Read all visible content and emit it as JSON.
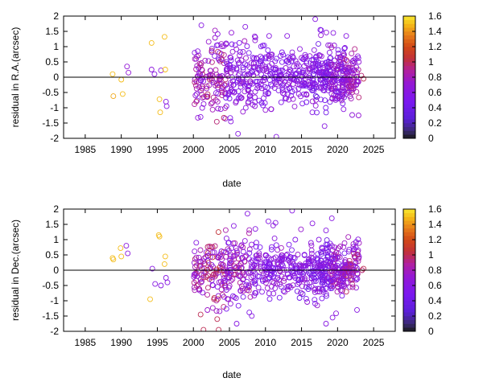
{
  "colors": {
    "axis": "#000000",
    "zero_line": "#000000",
    "cbar_stops": [
      [
        0.0,
        "#1a1a1a"
      ],
      [
        0.06,
        "#3a2a70"
      ],
      [
        0.16,
        "#5a20d8"
      ],
      [
        0.3,
        "#7a18f0"
      ],
      [
        0.45,
        "#9418d4"
      ],
      [
        0.55,
        "#b020a0"
      ],
      [
        0.65,
        "#c0303a"
      ],
      [
        0.75,
        "#d24818"
      ],
      [
        0.85,
        "#e8801a"
      ],
      [
        0.93,
        "#f4b818"
      ],
      [
        1.0,
        "#f8e830"
      ]
    ]
  },
  "chart_data": [
    {
      "type": "scatter",
      "xlabel": "date",
      "ylabel": "residual in R.A.(arcsec)",
      "xlim": [
        1982,
        2028
      ],
      "ylim": [
        -2,
        2
      ],
      "x_ticks": [
        "1985",
        "1990",
        "1995",
        "2000",
        "2005",
        "2010",
        "2015",
        "2020",
        "2025"
      ],
      "y_ticks": [
        "2",
        "1.5",
        "1",
        "0.5",
        "0",
        "-0.5",
        "-1",
        "-1.5",
        "-2"
      ],
      "colorbar": {
        "range": [
          0,
          1.6
        ],
        "ticks": [
          "1.6",
          "1.4",
          "1.2",
          "1",
          "0.8",
          "0.6",
          "0.4",
          "0.2",
          "0"
        ]
      },
      "points": [
        [
          1988.8,
          0.1,
          1.5
        ],
        [
          1988.9,
          -0.62,
          1.45
        ],
        [
          1990.0,
          -0.08,
          1.5
        ],
        [
          1990.2,
          -0.55,
          1.5
        ],
        [
          1990.8,
          0.35,
          0.7
        ],
        [
          1991.0,
          0.15,
          0.7
        ],
        [
          1994.2,
          1.12,
          1.5
        ],
        [
          1994.2,
          0.25,
          0.65
        ],
        [
          1994.6,
          0.1,
          0.6
        ],
        [
          1995.3,
          -0.72,
          1.5
        ],
        [
          1995.4,
          -1.15,
          1.5
        ],
        [
          1995.5,
          0.22,
          0.6
        ],
        [
          1996.0,
          1.32,
          1.5
        ],
        [
          1996.1,
          0.25,
          1.5
        ],
        [
          1996.2,
          -0.8,
          0.6
        ],
        [
          1996.3,
          -0.95,
          0.6
        ],
        [
          2000.6,
          0.85,
          0.6
        ],
        [
          2001.1,
          1.7,
          0.6
        ],
        [
          2001.0,
          -1.3,
          0.6
        ],
        [
          2003.4,
          1.05,
          0.6
        ],
        [
          2004.6,
          0.25,
          0.6
        ],
        [
          2005.2,
          -1.45,
          0.6
        ],
        [
          2005.8,
          1.05,
          0.6
        ],
        [
          2006.2,
          -1.85,
          0.6
        ],
        [
          2007.2,
          1.65,
          0.6
        ],
        [
          2008.6,
          1.3,
          0.6
        ],
        [
          2010.5,
          1.35,
          0.6
        ],
        [
          2011.5,
          -1.95,
          0.6
        ],
        [
          2013.0,
          1.35,
          0.6
        ],
        [
          2016.5,
          -1.15,
          0.6
        ],
        [
          2016.9,
          1.9,
          0.6
        ],
        [
          2017.6,
          1.55,
          0.6
        ],
        [
          2018.2,
          -1.6,
          0.6
        ],
        [
          2019.4,
          1.45,
          0.6
        ],
        [
          2021.2,
          1.35,
          0.6
        ],
        [
          2023.3,
          0.05,
          0.95
        ],
        [
          2023.6,
          -0.05,
          1.0
        ]
      ],
      "clusters": [
        {
          "x": [
            2000.0,
            2001.8
          ],
          "sigma": 0.55,
          "n": 46,
          "color": [
            0.55,
            0.95
          ]
        },
        {
          "x": [
            2001.8,
            2004.5
          ],
          "sigma": 0.6,
          "n": 82,
          "color": [
            0.55,
            1.0
          ]
        },
        {
          "x": [
            2004.5,
            2008.0
          ],
          "sigma": 0.55,
          "n": 106,
          "color": [
            0.45,
            0.8
          ]
        },
        {
          "x": [
            2008.0,
            2011.0
          ],
          "sigma": 0.5,
          "n": 86,
          "color": [
            0.45,
            0.75
          ]
        },
        {
          "x": [
            2011.0,
            2014.0
          ],
          "sigma": 0.45,
          "n": 78,
          "color": [
            0.45,
            0.75
          ]
        },
        {
          "x": [
            2014.0,
            2016.3
          ],
          "sigma": 0.45,
          "n": 62,
          "color": [
            0.45,
            0.75
          ]
        },
        {
          "x": [
            2016.3,
            2019.0
          ],
          "sigma": 0.55,
          "n": 118,
          "color": [
            0.35,
            0.75
          ]
        },
        {
          "x": [
            2019.0,
            2021.0
          ],
          "sigma": 0.5,
          "n": 112,
          "color": [
            0.4,
            0.85
          ]
        },
        {
          "x": [
            2021.0,
            2023.0
          ],
          "sigma": 0.45,
          "n": 86,
          "color": [
            0.55,
            0.95
          ]
        }
      ]
    },
    {
      "type": "scatter",
      "xlabel": "date",
      "ylabel": "residual in Dec.(arcsec)",
      "xlim": [
        1982,
        2028
      ],
      "ylim": [
        -2,
        2
      ],
      "x_ticks": [
        "1985",
        "1990",
        "1995",
        "2000",
        "2005",
        "2010",
        "2015",
        "2020",
        "2025"
      ],
      "y_ticks": [
        "2",
        "1.5",
        "1",
        "0.5",
        "0",
        "-0.5",
        "-1",
        "-1.5",
        "-2"
      ],
      "colorbar": {
        "range": [
          0,
          1.6
        ],
        "ticks": [
          "1.6",
          "1.4",
          "1.2",
          "1",
          "0.8",
          "0.6",
          "0.4",
          "0.2",
          "0"
        ]
      },
      "points": [
        [
          1988.8,
          0.4,
          1.5
        ],
        [
          1988.9,
          0.35,
          1.5
        ],
        [
          1989.9,
          0.72,
          1.5
        ],
        [
          1990.0,
          0.45,
          1.5
        ],
        [
          1990.7,
          0.8,
          0.65
        ],
        [
          1990.9,
          0.55,
          0.65
        ],
        [
          1994.0,
          -0.95,
          1.5
        ],
        [
          1994.3,
          0.05,
          0.6
        ],
        [
          1994.7,
          -0.45,
          0.6
        ],
        [
          1995.2,
          1.15,
          1.5
        ],
        [
          1995.3,
          1.1,
          1.5
        ],
        [
          1995.5,
          -0.5,
          0.6
        ],
        [
          1996.0,
          0.2,
          1.5
        ],
        [
          1996.1,
          0.45,
          1.5
        ],
        [
          1996.2,
          -0.25,
          0.6
        ],
        [
          1996.4,
          -0.4,
          0.6
        ],
        [
          2000.4,
          0.9,
          0.6
        ],
        [
          2001.0,
          -1.45,
          1.0
        ],
        [
          2001.4,
          -1.95,
          1.0
        ],
        [
          2003.3,
          -1.6,
          1.0
        ],
        [
          2003.5,
          -1.95,
          1.0
        ],
        [
          2004.2,
          -1.2,
          0.95
        ],
        [
          2005.6,
          1.45,
          0.6
        ],
        [
          2006.0,
          -1.75,
          0.6
        ],
        [
          2007.5,
          1.85,
          0.6
        ],
        [
          2008.6,
          1.35,
          0.6
        ],
        [
          2010.4,
          1.6,
          0.6
        ],
        [
          2011.4,
          1.55,
          0.6
        ],
        [
          2013.7,
          1.95,
          0.6
        ],
        [
          2017.4,
          1.0,
          0.6
        ],
        [
          2018.4,
          1.3,
          0.6
        ],
        [
          2019.2,
          1.7,
          0.6
        ],
        [
          2018.4,
          -1.75,
          0.6
        ],
        [
          2019.3,
          -1.55,
          0.6
        ],
        [
          2022.7,
          -1.3,
          0.6
        ],
        [
          2023.4,
          0.0,
          0.95
        ],
        [
          2023.6,
          0.05,
          1.0
        ]
      ],
      "clusters": [
        {
          "x": [
            2000.0,
            2001.8
          ],
          "sigma": 0.5,
          "n": 44,
          "color": [
            0.6,
            1.0
          ]
        },
        {
          "x": [
            2001.8,
            2004.5
          ],
          "sigma": 0.55,
          "n": 82,
          "color": [
            0.55,
            1.05
          ]
        },
        {
          "x": [
            2004.5,
            2008.0
          ],
          "sigma": 0.55,
          "n": 106,
          "color": [
            0.45,
            0.95
          ]
        },
        {
          "x": [
            2008.0,
            2011.0
          ],
          "sigma": 0.45,
          "n": 86,
          "color": [
            0.45,
            0.8
          ]
        },
        {
          "x": [
            2011.0,
            2014.0
          ],
          "sigma": 0.45,
          "n": 78,
          "color": [
            0.45,
            0.8
          ]
        },
        {
          "x": [
            2014.0,
            2016.3
          ],
          "sigma": 0.4,
          "n": 62,
          "color": [
            0.35,
            0.75
          ]
        },
        {
          "x": [
            2016.3,
            2019.0
          ],
          "sigma": 0.45,
          "n": 118,
          "color": [
            0.35,
            0.75
          ]
        },
        {
          "x": [
            2019.0,
            2021.0
          ],
          "sigma": 0.45,
          "n": 112,
          "color": [
            0.4,
            0.9
          ]
        },
        {
          "x": [
            2021.0,
            2023.0
          ],
          "sigma": 0.4,
          "n": 86,
          "color": [
            0.55,
            1.0
          ]
        }
      ]
    }
  ]
}
